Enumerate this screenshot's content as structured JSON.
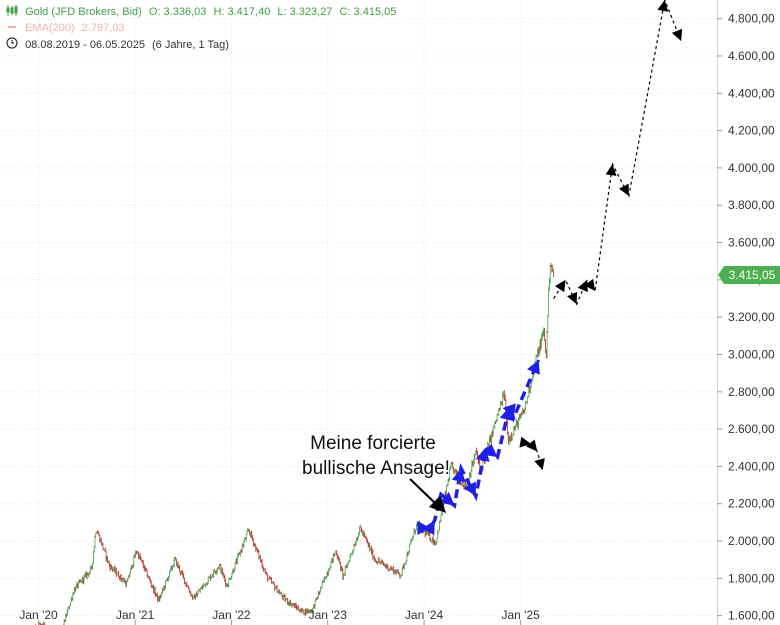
{
  "info": {
    "instrument": "Gold (JFD Brokers, Bid)",
    "open": "O: 3.336,03",
    "high": "H: 3.417,40",
    "low": "L: 3.323,27",
    "close": "C: 3.415,05",
    "ema_label": "EMA(200)",
    "ema_value": "2.797,03",
    "range": "08.08.2019 - 06.05.2025",
    "period": "(6 Jahre, 1 Tag)"
  },
  "annotation": [
    "Meine forcierte",
    "bullische Ansage!"
  ],
  "last_price_label": "3.415,05",
  "colors": {
    "up": "#43a047",
    "down": "#c62828",
    "tag": "#4caf50",
    "projection_blue": "#1f1fe6",
    "projection_black": "#000000",
    "grid": "#e6e6e6"
  },
  "chart_data": {
    "type": "candlestick",
    "title": "Gold (JFD Brokers, Bid)",
    "y_axis_side": "right",
    "ylim": [
      1550,
      4900
    ],
    "y_ticks": [
      1600,
      1800,
      2000,
      2200,
      2400,
      2600,
      2800,
      3000,
      3200,
      3400,
      3600,
      3800,
      4000,
      4200,
      4400,
      4600,
      4800
    ],
    "y_tick_labels": [
      "1.600,00",
      "1.800,00",
      "2.000,00",
      "2.200,00",
      "2.400,00",
      "2.600,00",
      "2.800,00",
      "3.000,00",
      "3.200,00",
      "3.400,00",
      "3.600,00",
      "3.800,00",
      "4.000,00",
      "4.200,00",
      "4.400,00",
      "4.600,00",
      "4.800,00"
    ],
    "x_tick_labels": [
      "Jan '20",
      "Jan '21",
      "Jan '22",
      "Jan '23",
      "Jan '24",
      "Jan '25"
    ],
    "xlim": [
      "2019-08-08",
      "2027-01-15"
    ],
    "last_close": 3415.05,
    "price_path": [
      {
        "date": "2019-08-08",
        "close": 1500
      },
      {
        "date": "2019-10-01",
        "close": 1490
      },
      {
        "date": "2020-01-15",
        "close": 1560
      },
      {
        "date": "2020-03-20",
        "close": 1480
      },
      {
        "date": "2020-05-15",
        "close": 1740
      },
      {
        "date": "2020-07-20",
        "close": 1850
      },
      {
        "date": "2020-08-06",
        "close": 2070
      },
      {
        "date": "2020-09-25",
        "close": 1870
      },
      {
        "date": "2020-11-30",
        "close": 1770
      },
      {
        "date": "2021-01-06",
        "close": 1950
      },
      {
        "date": "2021-03-31",
        "close": 1680
      },
      {
        "date": "2021-06-01",
        "close": 1900
      },
      {
        "date": "2021-08-09",
        "close": 1690
      },
      {
        "date": "2021-11-16",
        "close": 1870
      },
      {
        "date": "2021-12-15",
        "close": 1760
      },
      {
        "date": "2022-03-08",
        "close": 2060
      },
      {
        "date": "2022-05-15",
        "close": 1810
      },
      {
        "date": "2022-07-20",
        "close": 1690
      },
      {
        "date": "2022-09-28",
        "close": 1620
      },
      {
        "date": "2022-11-03",
        "close": 1630
      },
      {
        "date": "2023-02-01",
        "close": 1950
      },
      {
        "date": "2023-02-28",
        "close": 1810
      },
      {
        "date": "2023-05-04",
        "close": 2070
      },
      {
        "date": "2023-06-29",
        "close": 1900
      },
      {
        "date": "2023-10-05",
        "close": 1820
      },
      {
        "date": "2023-12-04",
        "close": 2090
      },
      {
        "date": "2024-02-14",
        "close": 1990
      },
      {
        "date": "2024-04-12",
        "close": 2400
      },
      {
        "date": "2024-06-07",
        "close": 2290
      },
      {
        "date": "2024-07-17",
        "close": 2480
      },
      {
        "date": "2024-08-01",
        "close": 2370
      },
      {
        "date": "2024-10-31",
        "close": 2790
      },
      {
        "date": "2024-11-14",
        "close": 2540
      },
      {
        "date": "2025-01-15",
        "close": 2700
      },
      {
        "date": "2025-02-24",
        "close": 2950
      },
      {
        "date": "2025-03-31",
        "close": 3130
      },
      {
        "date": "2025-04-07",
        "close": 2970
      },
      {
        "date": "2025-04-22",
        "close": 3500
      },
      {
        "date": "2025-05-06",
        "close": 3415
      }
    ],
    "projection_blue": [
      {
        "date": "2023-12-20",
        "value": 2070
      },
      {
        "date": "2024-01-25",
        "value": 2070
      },
      {
        "date": "2024-02-10",
        "value": 2110
      },
      {
        "date": "2024-03-05",
        "value": 2250
      },
      {
        "date": "2024-04-25",
        "value": 2190
      },
      {
        "date": "2024-05-20",
        "value": 2390
      },
      {
        "date": "2024-07-15",
        "value": 2240
      },
      {
        "date": "2024-08-20",
        "value": 2500
      },
      {
        "date": "2024-10-05",
        "value": 2450
      },
      {
        "date": "2024-11-20",
        "value": 2720
      },
      {
        "date": "2024-12-05",
        "value": 2660
      },
      {
        "date": "2025-03-10",
        "value": 2970
      }
    ],
    "projection_black_minor": [
      {
        "date": "2025-01-01",
        "value": 2530
      },
      {
        "date": "2025-02-10",
        "value": 2520
      },
      {
        "date": "2025-03-05",
        "value": 2480
      },
      {
        "date": "2025-03-25",
        "value": 2380
      }
    ],
    "projection_black_main": [
      {
        "date": "2025-05-06",
        "value": 3300
      },
      {
        "date": "2025-06-20",
        "value": 3400
      },
      {
        "date": "2025-08-01",
        "value": 3270
      },
      {
        "date": "2025-09-10",
        "value": 3400
      },
      {
        "date": "2025-10-10",
        "value": 3340
      },
      {
        "date": "2025-12-15",
        "value": 4020
      },
      {
        "date": "2026-02-15",
        "value": 3850
      },
      {
        "date": "2026-07-01",
        "value": 4900
      },
      {
        "date": "2026-09-01",
        "value": 4680
      }
    ]
  }
}
